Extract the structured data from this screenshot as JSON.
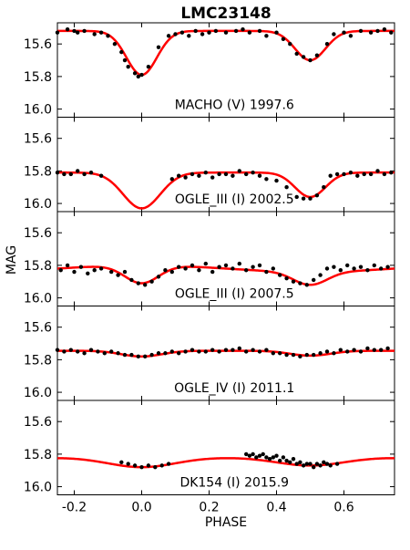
{
  "chart_data": {
    "type": "scatter",
    "title": "LMC23148",
    "xlabel": "PHASE",
    "ylabel": "MAG",
    "xlim": [
      -0.25,
      0.75
    ],
    "ylim": [
      16.05,
      15.47
    ],
    "y_inverted": true,
    "shared_x_axis": true,
    "xticks": [
      "-0.2",
      "0.0",
      "0.2",
      "0.4",
      "0.6"
    ],
    "yticks": [
      "15.6",
      "15.8",
      "16.0"
    ],
    "fit_color": "#ff0000",
    "point_color": "#000000",
    "grid": false,
    "panels": [
      {
        "label": "MACHO (V) 1997.6",
        "model": {
          "base": 15.52,
          "slope": 0,
          "primary_depth": 0.27,
          "primary_width": 0.045,
          "secondary_depth": 0.18,
          "secondary_width": 0.045
        },
        "x": [
          -0.25,
          -0.22,
          -0.2,
          -0.19,
          -0.17,
          -0.14,
          -0.12,
          -0.1,
          -0.08,
          -0.06,
          -0.05,
          -0.04,
          -0.02,
          -0.01,
          0.0,
          0.02,
          0.05,
          0.08,
          0.1,
          0.12,
          0.14,
          0.16,
          0.18,
          0.2,
          0.22,
          0.25,
          0.28,
          0.3,
          0.32,
          0.35,
          0.37,
          0.4,
          0.42,
          0.44,
          0.46,
          0.48,
          0.5,
          0.52,
          0.55,
          0.57,
          0.6,
          0.62,
          0.65,
          0.68,
          0.7,
          0.72,
          0.74
        ],
        "y": [
          15.53,
          15.51,
          15.52,
          15.53,
          15.52,
          15.54,
          15.53,
          15.55,
          15.6,
          15.65,
          15.7,
          15.74,
          15.78,
          15.8,
          15.79,
          15.74,
          15.62,
          15.55,
          15.54,
          15.53,
          15.55,
          15.52,
          15.54,
          15.53,
          15.52,
          15.53,
          15.52,
          15.51,
          15.53,
          15.52,
          15.55,
          15.53,
          15.57,
          15.6,
          15.66,
          15.68,
          15.7,
          15.67,
          15.6,
          15.54,
          15.53,
          15.55,
          15.52,
          15.53,
          15.52,
          15.51,
          15.53
        ]
      },
      {
        "label": "OGLE_III (I) 2002.5",
        "model": {
          "base": 15.81,
          "slope": 0,
          "primary_depth": 0.22,
          "primary_width": 0.055,
          "secondary_depth": 0.15,
          "secondary_width": 0.045
        },
        "x": [
          -0.25,
          -0.23,
          -0.21,
          -0.19,
          -0.17,
          -0.15,
          -0.12,
          0.09,
          0.11,
          0.13,
          0.15,
          0.17,
          0.19,
          0.21,
          0.23,
          0.25,
          0.27,
          0.29,
          0.31,
          0.33,
          0.35,
          0.37,
          0.4,
          0.43,
          0.46,
          0.48,
          0.5,
          0.52,
          0.54,
          0.56,
          0.58,
          0.6,
          0.62,
          0.64,
          0.66,
          0.68,
          0.7,
          0.72,
          0.74
        ],
        "y": [
          15.81,
          15.82,
          15.82,
          15.8,
          15.82,
          15.81,
          15.83,
          15.85,
          15.83,
          15.84,
          15.82,
          15.83,
          15.81,
          15.84,
          15.82,
          15.82,
          15.83,
          15.8,
          15.82,
          15.81,
          15.83,
          15.85,
          15.86,
          15.9,
          15.96,
          15.97,
          15.97,
          15.95,
          15.9,
          15.83,
          15.82,
          15.82,
          15.81,
          15.83,
          15.82,
          15.82,
          15.8,
          15.82,
          15.81
        ]
      },
      {
        "label": "OGLE_III (I) 2007.5",
        "model": {
          "base": 15.82,
          "slope": -0.02,
          "primary_depth": 0.11,
          "primary_width": 0.05,
          "secondary_depth": 0.08,
          "secondary_width": 0.05
        },
        "x": [
          -0.24,
          -0.22,
          -0.2,
          -0.18,
          -0.16,
          -0.14,
          -0.12,
          -0.09,
          -0.07,
          -0.05,
          -0.03,
          -0.01,
          0.01,
          0.03,
          0.05,
          0.07,
          0.09,
          0.11,
          0.13,
          0.15,
          0.17,
          0.19,
          0.21,
          0.23,
          0.25,
          0.27,
          0.29,
          0.31,
          0.33,
          0.35,
          0.37,
          0.39,
          0.41,
          0.43,
          0.45,
          0.47,
          0.49,
          0.51,
          0.53,
          0.55,
          0.57,
          0.59,
          0.61,
          0.63,
          0.65,
          0.67,
          0.69,
          0.71,
          0.73
        ],
        "y": [
          15.83,
          15.8,
          15.84,
          15.81,
          15.85,
          15.83,
          15.82,
          15.84,
          15.86,
          15.84,
          15.89,
          15.91,
          15.92,
          15.9,
          15.87,
          15.83,
          15.84,
          15.81,
          15.82,
          15.8,
          15.83,
          15.79,
          15.84,
          15.81,
          15.8,
          15.82,
          15.79,
          15.83,
          15.81,
          15.8,
          15.84,
          15.82,
          15.86,
          15.88,
          15.9,
          15.91,
          15.92,
          15.89,
          15.86,
          15.82,
          15.81,
          15.83,
          15.8,
          15.82,
          15.81,
          15.83,
          15.8,
          15.82,
          15.81
        ]
      },
      {
        "label": "OGLE_IV (I) 2011.1",
        "model": {
          "base": 15.745,
          "slope": 0,
          "primary_depth": 0.035,
          "primary_width": 0.06,
          "secondary_depth": 0.03,
          "secondary_width": 0.06
        },
        "x": [
          -0.25,
          -0.23,
          -0.21,
          -0.19,
          -0.17,
          -0.15,
          -0.13,
          -0.11,
          -0.09,
          -0.07,
          -0.05,
          -0.03,
          -0.01,
          0.01,
          0.03,
          0.05,
          0.07,
          0.09,
          0.11,
          0.13,
          0.15,
          0.17,
          0.19,
          0.21,
          0.23,
          0.25,
          0.27,
          0.29,
          0.31,
          0.33,
          0.35,
          0.37,
          0.39,
          0.41,
          0.43,
          0.45,
          0.47,
          0.49,
          0.51,
          0.53,
          0.55,
          0.57,
          0.59,
          0.61,
          0.63,
          0.65,
          0.67,
          0.69,
          0.71,
          0.73
        ],
        "y": [
          15.74,
          15.75,
          15.74,
          15.75,
          15.76,
          15.74,
          15.75,
          15.76,
          15.75,
          15.76,
          15.77,
          15.77,
          15.78,
          15.78,
          15.77,
          15.76,
          15.76,
          15.75,
          15.76,
          15.75,
          15.74,
          15.75,
          15.75,
          15.74,
          15.75,
          15.74,
          15.74,
          15.73,
          15.75,
          15.74,
          15.75,
          15.74,
          15.76,
          15.76,
          15.77,
          15.77,
          15.78,
          15.77,
          15.77,
          15.76,
          15.75,
          15.76,
          15.74,
          15.75,
          15.74,
          15.75,
          15.73,
          15.74,
          15.74,
          15.73
        ]
      },
      {
        "label": "DK154 (I) 2015.9",
        "model": {
          "base": 15.82,
          "slope": 0,
          "primary_depth": 0.06,
          "primary_width": 0.1,
          "secondary_depth": 0.05,
          "secondary_width": 0.1
        },
        "x": [
          -0.06,
          -0.04,
          -0.02,
          0.0,
          0.02,
          0.04,
          0.06,
          0.08,
          0.31,
          0.32,
          0.33,
          0.34,
          0.35,
          0.36,
          0.37,
          0.38,
          0.39,
          0.4,
          0.41,
          0.42,
          0.43,
          0.44,
          0.45,
          0.46,
          0.47,
          0.48,
          0.49,
          0.5,
          0.51,
          0.52,
          0.53,
          0.54,
          0.55,
          0.56,
          0.58
        ],
        "y": [
          15.85,
          15.86,
          15.87,
          15.88,
          15.87,
          15.88,
          15.87,
          15.86,
          15.8,
          15.81,
          15.8,
          15.82,
          15.81,
          15.8,
          15.82,
          15.83,
          15.82,
          15.81,
          15.84,
          15.82,
          15.84,
          15.85,
          15.83,
          15.86,
          15.85,
          15.87,
          15.86,
          15.86,
          15.88,
          15.86,
          15.87,
          15.85,
          15.86,
          15.87,
          15.86
        ]
      }
    ]
  }
}
